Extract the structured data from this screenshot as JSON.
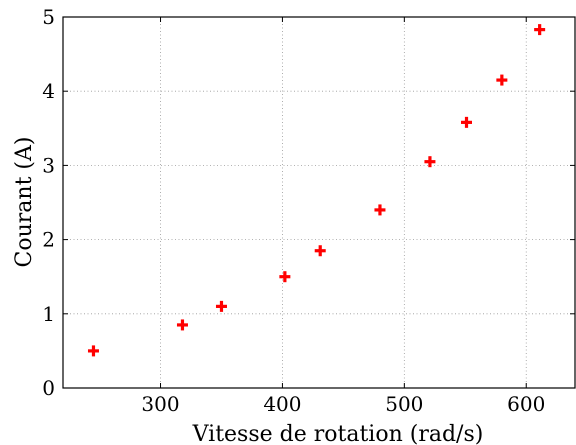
{
  "chart_data": {
    "type": "scatter",
    "xlabel": "Vitesse de rotation (rad/s)",
    "ylabel": "Courant (A)",
    "xlim": [
      220,
      640
    ],
    "ylim": [
      0,
      5
    ],
    "x_ticks": [
      300,
      400,
      500,
      600
    ],
    "y_ticks": [
      0,
      1,
      2,
      3,
      4,
      5
    ],
    "grid": true,
    "marker": "plus",
    "marker_color": "#ff0000",
    "series": [
      {
        "x": [
          245,
          318,
          350,
          402,
          431,
          480,
          521,
          551,
          580,
          611
        ],
        "y": [
          0.5,
          0.85,
          1.1,
          1.5,
          1.85,
          2.4,
          3.05,
          3.58,
          4.15,
          4.83
        ]
      }
    ]
  }
}
